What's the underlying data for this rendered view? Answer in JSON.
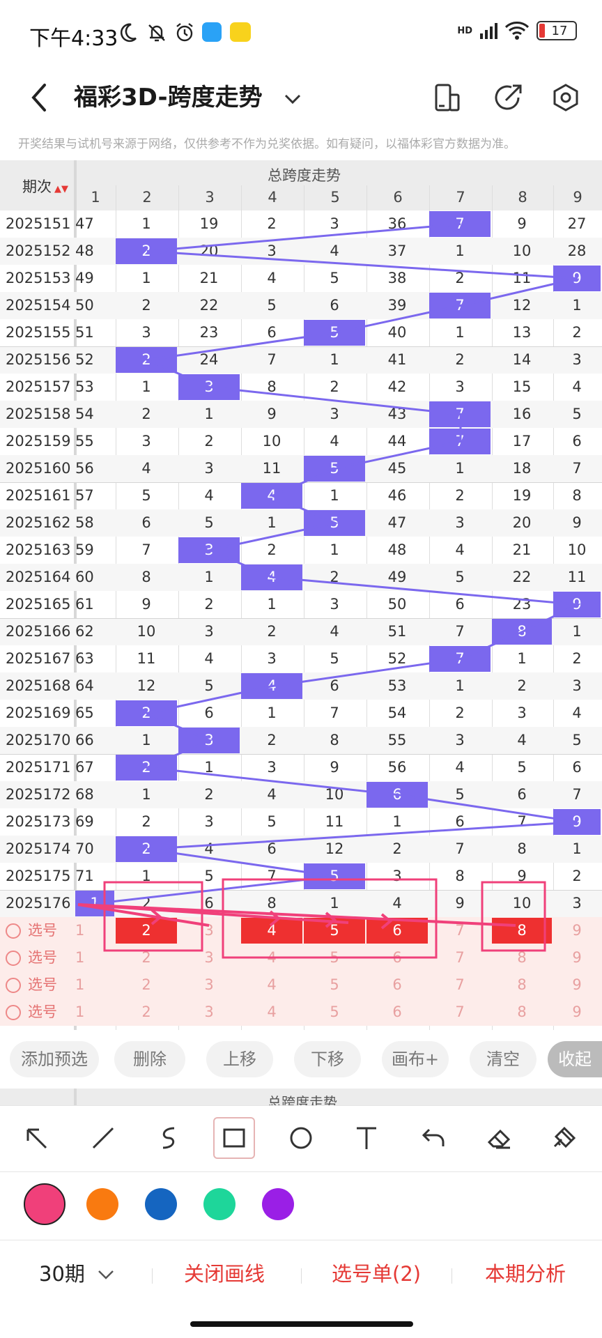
{
  "status_bar": {
    "time": "下午4:33",
    "network": "HD",
    "battery": "17"
  },
  "header": {
    "title": "福彩3D-跨度走势"
  },
  "notice": "开奖结果与试机号来源于网络，仅供参考不作为兑奖依据。如有疑问，以福体彩官方数据为准。",
  "table": {
    "period_header": "期次",
    "group_header": "总跨度走势",
    "columns": [
      "1",
      "2",
      "3",
      "4",
      "5",
      "6",
      "7",
      "8",
      "9"
    ],
    "rows": [
      {
        "period": "2025151",
        "cells": [
          "47",
          "1",
          "19",
          "2",
          "3",
          "36",
          "7",
          "9",
          "27"
        ],
        "hit": 6
      },
      {
        "period": "2025152",
        "cells": [
          "48",
          "2",
          "20",
          "3",
          "4",
          "37",
          "1",
          "10",
          "28"
        ],
        "hit": 1
      },
      {
        "period": "2025153",
        "cells": [
          "49",
          "1",
          "21",
          "4",
          "5",
          "38",
          "2",
          "11",
          "9"
        ],
        "hit": 8
      },
      {
        "period": "2025154",
        "cells": [
          "50",
          "2",
          "22",
          "5",
          "6",
          "39",
          "7",
          "12",
          "1"
        ],
        "hit": 6
      },
      {
        "period": "2025155",
        "cells": [
          "51",
          "3",
          "23",
          "6",
          "5",
          "40",
          "1",
          "13",
          "2"
        ],
        "hit": 4
      },
      {
        "period": "2025156",
        "cells": [
          "52",
          "2",
          "24",
          "7",
          "1",
          "41",
          "2",
          "14",
          "3"
        ],
        "hit": 1
      },
      {
        "period": "2025157",
        "cells": [
          "53",
          "1",
          "3",
          "8",
          "2",
          "42",
          "3",
          "15",
          "4"
        ],
        "hit": 2
      },
      {
        "period": "2025158",
        "cells": [
          "54",
          "2",
          "1",
          "9",
          "3",
          "43",
          "7",
          "16",
          "5"
        ],
        "hit": 6
      },
      {
        "period": "2025159",
        "cells": [
          "55",
          "3",
          "2",
          "10",
          "4",
          "44",
          "7",
          "17",
          "6"
        ],
        "hit": 6
      },
      {
        "period": "2025160",
        "cells": [
          "56",
          "4",
          "3",
          "11",
          "5",
          "45",
          "1",
          "18",
          "7"
        ],
        "hit": 4
      },
      {
        "period": "2025161",
        "cells": [
          "57",
          "5",
          "4",
          "4",
          "1",
          "46",
          "2",
          "19",
          "8"
        ],
        "hit": 3
      },
      {
        "period": "2025162",
        "cells": [
          "58",
          "6",
          "5",
          "1",
          "5",
          "47",
          "3",
          "20",
          "9"
        ],
        "hit": 4
      },
      {
        "period": "2025163",
        "cells": [
          "59",
          "7",
          "3",
          "2",
          "1",
          "48",
          "4",
          "21",
          "10"
        ],
        "hit": 2
      },
      {
        "period": "2025164",
        "cells": [
          "60",
          "8",
          "1",
          "4",
          "2",
          "49",
          "5",
          "22",
          "11"
        ],
        "hit": 3
      },
      {
        "period": "2025165",
        "cells": [
          "61",
          "9",
          "2",
          "1",
          "3",
          "50",
          "6",
          "23",
          "9"
        ],
        "hit": 8
      },
      {
        "period": "2025166",
        "cells": [
          "62",
          "10",
          "3",
          "2",
          "4",
          "51",
          "7",
          "8",
          "1"
        ],
        "hit": 7
      },
      {
        "period": "2025167",
        "cells": [
          "63",
          "11",
          "4",
          "3",
          "5",
          "52",
          "7",
          "1",
          "2"
        ],
        "hit": 6
      },
      {
        "period": "2025168",
        "cells": [
          "64",
          "12",
          "5",
          "4",
          "6",
          "53",
          "1",
          "2",
          "3"
        ],
        "hit": 3
      },
      {
        "period": "2025169",
        "cells": [
          "65",
          "2",
          "6",
          "1",
          "7",
          "54",
          "2",
          "3",
          "4"
        ],
        "hit": 1
      },
      {
        "period": "2025170",
        "cells": [
          "66",
          "1",
          "3",
          "2",
          "8",
          "55",
          "3",
          "4",
          "5"
        ],
        "hit": 2
      },
      {
        "period": "2025171",
        "cells": [
          "67",
          "2",
          "1",
          "3",
          "9",
          "56",
          "4",
          "5",
          "6"
        ],
        "hit": 1
      },
      {
        "period": "2025172",
        "cells": [
          "68",
          "1",
          "2",
          "4",
          "10",
          "6",
          "5",
          "6",
          "7"
        ],
        "hit": 5
      },
      {
        "period": "2025173",
        "cells": [
          "69",
          "2",
          "3",
          "5",
          "11",
          "1",
          "6",
          "7",
          "9"
        ],
        "hit": 8
      },
      {
        "period": "2025174",
        "cells": [
          "70",
          "2",
          "4",
          "6",
          "12",
          "2",
          "7",
          "8",
          "1"
        ],
        "hit": 1
      },
      {
        "period": "2025175",
        "cells": [
          "71",
          "1",
          "5",
          "7",
          "5",
          "3",
          "8",
          "9",
          "2"
        ],
        "hit": 4
      },
      {
        "period": "2025176",
        "cells": [
          "1",
          "2",
          "6",
          "8",
          "1",
          "4",
          "9",
          "10",
          "3"
        ],
        "hit": 0
      }
    ],
    "pick_rows": [
      {
        "label": "选号",
        "cells": [
          "1",
          "2",
          "3",
          "4",
          "5",
          "6",
          "7",
          "8",
          "9"
        ],
        "selected": [
          1,
          3,
          4,
          5,
          7
        ]
      },
      {
        "label": "选号",
        "cells": [
          "1",
          "2",
          "3",
          "4",
          "5",
          "6",
          "7",
          "8",
          "9"
        ],
        "selected": []
      },
      {
        "label": "选号",
        "cells": [
          "1",
          "2",
          "3",
          "4",
          "5",
          "6",
          "7",
          "8",
          "9"
        ],
        "selected": []
      },
      {
        "label": "选号",
        "cells": [
          "1",
          "2",
          "3",
          "4",
          "5",
          "6",
          "7",
          "8",
          "9"
        ],
        "selected": []
      }
    ]
  },
  "actions": [
    "添加预选",
    "删除",
    "上移",
    "下移",
    "画布+",
    "清空",
    "收起"
  ],
  "sub_header": "总跨度走势",
  "tools": [
    "arrow-tool",
    "line-tool",
    "curve-tool",
    "rect-tool",
    "circle-tool",
    "text-tool",
    "undo-tool",
    "eraser-tool",
    "clear-tool"
  ],
  "colors": [
    "#f0407a",
    "#f97a10",
    "#1565c0",
    "#1ed69a",
    "#9a1fe6"
  ],
  "bottom_bar": {
    "period_select": "30期",
    "close_lines": "关闭画线",
    "pick_list": "选号单(2)",
    "analysis": "本期分析"
  },
  "accent": "#7b68ee"
}
